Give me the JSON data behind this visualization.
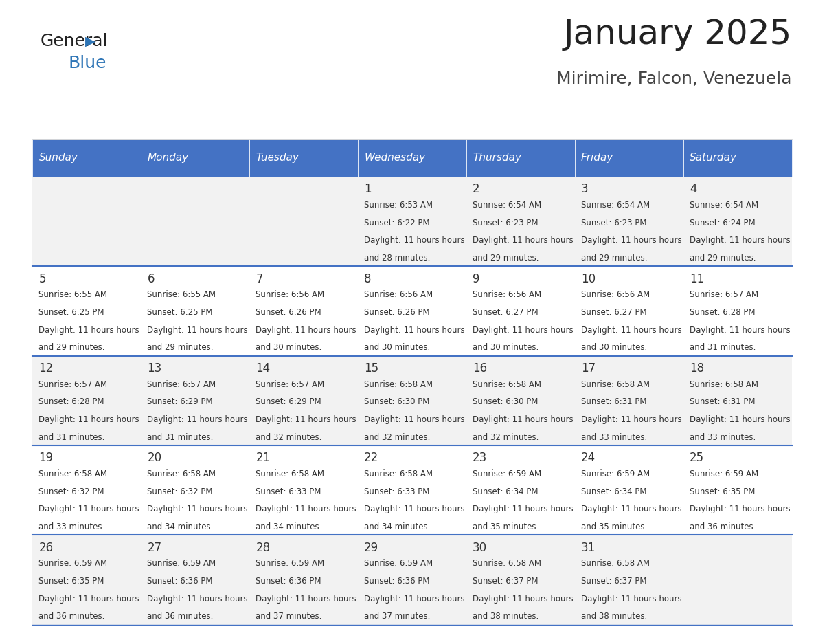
{
  "title": "January 2025",
  "subtitle": "Mirimire, Falcon, Venezuela",
  "days_of_week": [
    "Sunday",
    "Monday",
    "Tuesday",
    "Wednesday",
    "Thursday",
    "Friday",
    "Saturday"
  ],
  "header_bg": "#4472C4",
  "header_text": "#FFFFFF",
  "cell_bg_light": "#F2F2F2",
  "cell_bg_white": "#FFFFFF",
  "cell_border": "#4472C4",
  "text_color": "#333333",
  "title_color": "#222222",
  "subtitle_color": "#444444",
  "calendar_data": [
    [
      {
        "day": null,
        "sunrise": null,
        "sunset": null,
        "daylight": null
      },
      {
        "day": null,
        "sunrise": null,
        "sunset": null,
        "daylight": null
      },
      {
        "day": null,
        "sunrise": null,
        "sunset": null,
        "daylight": null
      },
      {
        "day": 1,
        "sunrise": "6:53 AM",
        "sunset": "6:22 PM",
        "daylight": "11 hours and 28 minutes."
      },
      {
        "day": 2,
        "sunrise": "6:54 AM",
        "sunset": "6:23 PM",
        "daylight": "11 hours and 29 minutes."
      },
      {
        "day": 3,
        "sunrise": "6:54 AM",
        "sunset": "6:23 PM",
        "daylight": "11 hours and 29 minutes."
      },
      {
        "day": 4,
        "sunrise": "6:54 AM",
        "sunset": "6:24 PM",
        "daylight": "11 hours and 29 minutes."
      }
    ],
    [
      {
        "day": 5,
        "sunrise": "6:55 AM",
        "sunset": "6:25 PM",
        "daylight": "11 hours and 29 minutes."
      },
      {
        "day": 6,
        "sunrise": "6:55 AM",
        "sunset": "6:25 PM",
        "daylight": "11 hours and 29 minutes."
      },
      {
        "day": 7,
        "sunrise": "6:56 AM",
        "sunset": "6:26 PM",
        "daylight": "11 hours and 30 minutes."
      },
      {
        "day": 8,
        "sunrise": "6:56 AM",
        "sunset": "6:26 PM",
        "daylight": "11 hours and 30 minutes."
      },
      {
        "day": 9,
        "sunrise": "6:56 AM",
        "sunset": "6:27 PM",
        "daylight": "11 hours and 30 minutes."
      },
      {
        "day": 10,
        "sunrise": "6:56 AM",
        "sunset": "6:27 PM",
        "daylight": "11 hours and 30 minutes."
      },
      {
        "day": 11,
        "sunrise": "6:57 AM",
        "sunset": "6:28 PM",
        "daylight": "11 hours and 31 minutes."
      }
    ],
    [
      {
        "day": 12,
        "sunrise": "6:57 AM",
        "sunset": "6:28 PM",
        "daylight": "11 hours and 31 minutes."
      },
      {
        "day": 13,
        "sunrise": "6:57 AM",
        "sunset": "6:29 PM",
        "daylight": "11 hours and 31 minutes."
      },
      {
        "day": 14,
        "sunrise": "6:57 AM",
        "sunset": "6:29 PM",
        "daylight": "11 hours and 32 minutes."
      },
      {
        "day": 15,
        "sunrise": "6:58 AM",
        "sunset": "6:30 PM",
        "daylight": "11 hours and 32 minutes."
      },
      {
        "day": 16,
        "sunrise": "6:58 AM",
        "sunset": "6:30 PM",
        "daylight": "11 hours and 32 minutes."
      },
      {
        "day": 17,
        "sunrise": "6:58 AM",
        "sunset": "6:31 PM",
        "daylight": "11 hours and 33 minutes."
      },
      {
        "day": 18,
        "sunrise": "6:58 AM",
        "sunset": "6:31 PM",
        "daylight": "11 hours and 33 minutes."
      }
    ],
    [
      {
        "day": 19,
        "sunrise": "6:58 AM",
        "sunset": "6:32 PM",
        "daylight": "11 hours and 33 minutes."
      },
      {
        "day": 20,
        "sunrise": "6:58 AM",
        "sunset": "6:32 PM",
        "daylight": "11 hours and 34 minutes."
      },
      {
        "day": 21,
        "sunrise": "6:58 AM",
        "sunset": "6:33 PM",
        "daylight": "11 hours and 34 minutes."
      },
      {
        "day": 22,
        "sunrise": "6:58 AM",
        "sunset": "6:33 PM",
        "daylight": "11 hours and 34 minutes."
      },
      {
        "day": 23,
        "sunrise": "6:59 AM",
        "sunset": "6:34 PM",
        "daylight": "11 hours and 35 minutes."
      },
      {
        "day": 24,
        "sunrise": "6:59 AM",
        "sunset": "6:34 PM",
        "daylight": "11 hours and 35 minutes."
      },
      {
        "day": 25,
        "sunrise": "6:59 AM",
        "sunset": "6:35 PM",
        "daylight": "11 hours and 36 minutes."
      }
    ],
    [
      {
        "day": 26,
        "sunrise": "6:59 AM",
        "sunset": "6:35 PM",
        "daylight": "11 hours and 36 minutes."
      },
      {
        "day": 27,
        "sunrise": "6:59 AM",
        "sunset": "6:36 PM",
        "daylight": "11 hours and 36 minutes."
      },
      {
        "day": 28,
        "sunrise": "6:59 AM",
        "sunset": "6:36 PM",
        "daylight": "11 hours and 37 minutes."
      },
      {
        "day": 29,
        "sunrise": "6:59 AM",
        "sunset": "6:36 PM",
        "daylight": "11 hours and 37 minutes."
      },
      {
        "day": 30,
        "sunrise": "6:58 AM",
        "sunset": "6:37 PM",
        "daylight": "11 hours and 38 minutes."
      },
      {
        "day": 31,
        "sunrise": "6:58 AM",
        "sunset": "6:37 PM",
        "daylight": "11 hours and 38 minutes."
      },
      {
        "day": null,
        "sunrise": null,
        "sunset": null,
        "daylight": null
      }
    ]
  ]
}
